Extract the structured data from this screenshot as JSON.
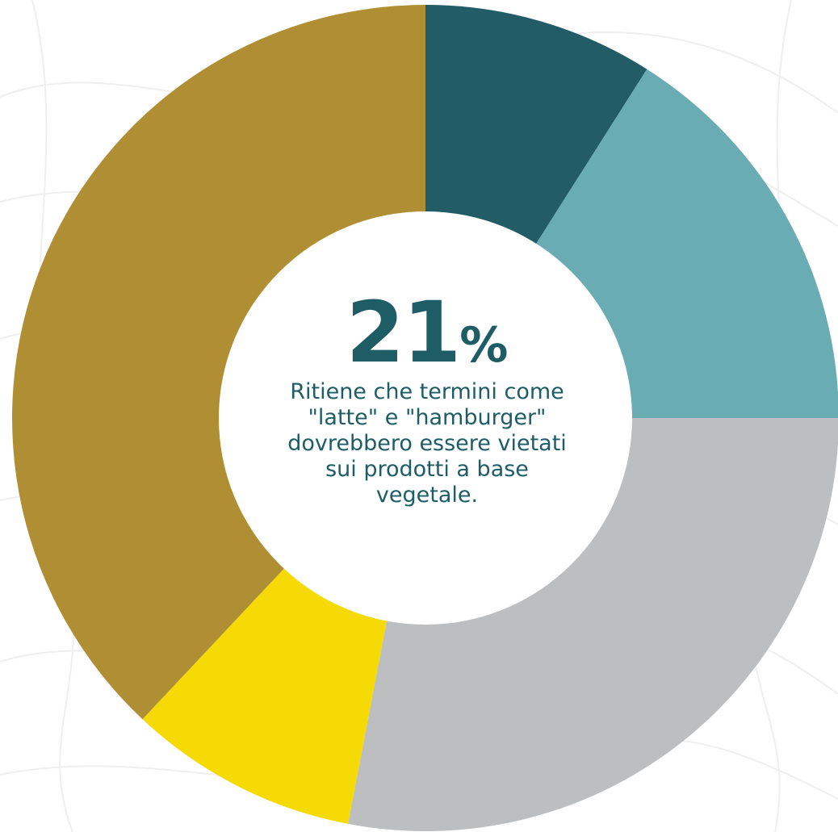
{
  "colors": {
    "background": "#ffffff",
    "pattern_line": "#efefef",
    "center_text": "#1e5c66"
  },
  "chart_data": {
    "type": "pie",
    "variant": "donut",
    "title": "",
    "slices": [
      {
        "value": 9,
        "color": "#225c66"
      },
      {
        "value": 16,
        "color": "#69acb4"
      },
      {
        "value": 28,
        "color": "#bdbebf"
      },
      {
        "value": 9,
        "color": "#f5da06"
      },
      {
        "value": 38,
        "color": "#b08e33"
      }
    ],
    "center": {
      "number": "21",
      "unit": "%",
      "text": "Ritiene che termini come \"latte\" e \"hamburger\" dovrebbero essere vietati sui prodotti a base vegetale."
    }
  }
}
